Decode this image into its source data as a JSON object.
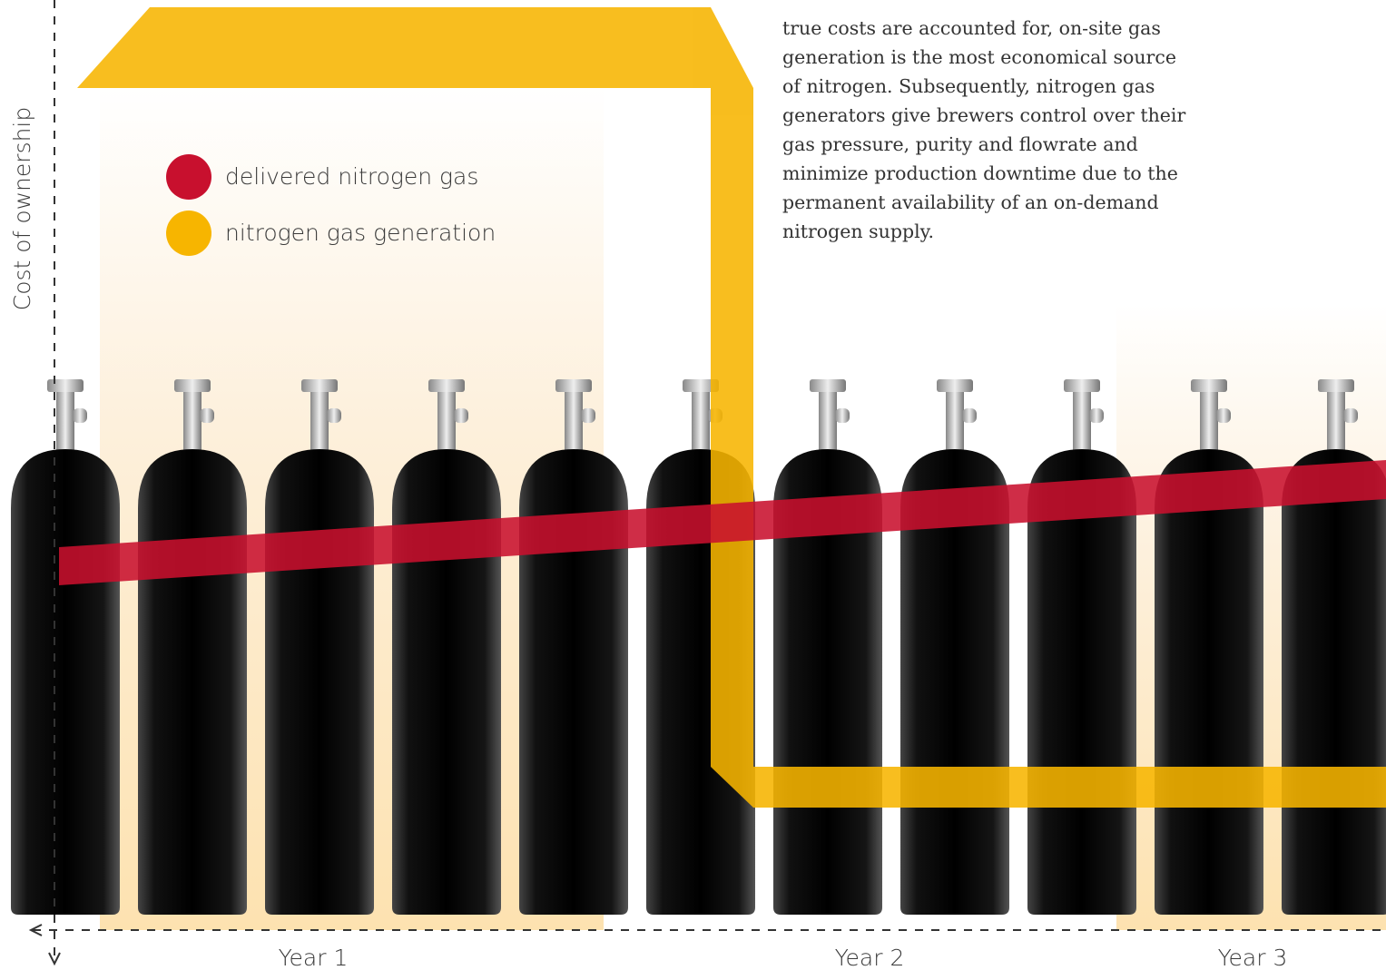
{
  "axis": {
    "y_label": "Cost of ownership",
    "x_labels": [
      "Year 1",
      "Year 2",
      "Year 3"
    ]
  },
  "legend": [
    "delivered nitrogen gas",
    "nitrogen gas generation"
  ],
  "paragraph": {
    "lines": [
      "true costs are accounted for, on-site gas",
      "generation is the most economical source",
      "of nitrogen. Subsequently, nitrogen gas",
      "generators give brewers control over their",
      "gas pressure, purity and flowrate and",
      "minimize production downtime due to the",
      "permanent availability of an on-demand",
      "nitrogen supply."
    ]
  }
}
